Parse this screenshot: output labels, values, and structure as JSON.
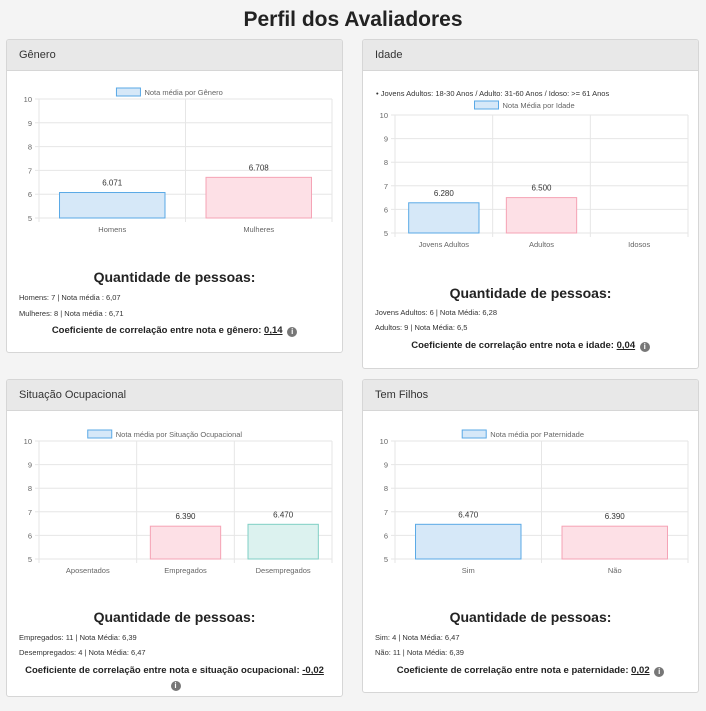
{
  "page": {
    "title": "Perfil dos Avaliadores"
  },
  "cards": [
    {
      "header": "Gênero",
      "note": "",
      "qty_title": "Quantidade de pessoas:",
      "lines": [
        "Homens: 7 | Nota média : 6,07",
        "Mulheres: 8 | Nota média : 6,71"
      ],
      "corr_label": "Coeficiente de correlação entre nota e gênero:",
      "corr_value": "0,14",
      "info_icon": "i"
    },
    {
      "header": "Idade",
      "note": "• Jovens Adultos: 18-30 Anos / Adulto: 31-60 Anos / Idoso: >= 61 Anos",
      "qty_title": "Quantidade de pessoas:",
      "lines": [
        "Jovens Adultos: 6 | Nota Média: 6,28",
        "Adultos: 9 | Nota Média: 6,5"
      ],
      "corr_label": "Coeficiente de correlação entre nota e idade:",
      "corr_value": "0,04",
      "info_icon": "i"
    },
    {
      "header": "Situação Ocupacional",
      "note": "",
      "qty_title": "Quantidade de pessoas:",
      "lines": [
        "Empregados: 11 | Nota Média: 6,39",
        "Desempregados: 4 | Nota Média: 6,47"
      ],
      "corr_label": "Coeficiente de correlação entre nota e situação ocupacional:",
      "corr_value": "-0,02",
      "info_icon": "i"
    },
    {
      "header": "Tem Filhos",
      "note": "",
      "qty_title": "Quantidade de pessoas:",
      "lines": [
        "Sim: 4 | Nota Média: 6,47",
        "Não: 11 | Nota Média: 6,39"
      ],
      "corr_label": "Coeficiente de correlação entre nota e paternidade:",
      "corr_value": "0,02",
      "info_icon": "i"
    }
  ],
  "chart_data": [
    {
      "type": "bar",
      "title": "",
      "legend": "Nota média por Gênero",
      "legend_position": "top",
      "categories": [
        "Homens",
        "Mulheres"
      ],
      "values": [
        6.071,
        6.708
      ],
      "data_labels": [
        "6.071",
        "6.708"
      ],
      "colors": [
        "#d6e8f8",
        "#fde0e6"
      ],
      "border_colors": [
        "#5aa9e6",
        "#f5a3b5"
      ],
      "y_ticks": [
        "5",
        "6",
        "7",
        "8",
        "9",
        "10"
      ],
      "ylim": [
        5,
        10
      ],
      "grid": true
    },
    {
      "type": "bar",
      "title": "",
      "legend": "Nota Média por Idade",
      "legend_position": "top",
      "categories": [
        "Jovens Adultos",
        "Adultos",
        "Idosos"
      ],
      "values": [
        6.28,
        6.5,
        null
      ],
      "data_labels": [
        "6.280",
        "6.500",
        ""
      ],
      "colors": [
        "#d6e8f8",
        "#fde0e6",
        "#d6e8f8"
      ],
      "border_colors": [
        "#5aa9e6",
        "#f5a3b5",
        "#5aa9e6"
      ],
      "y_ticks": [
        "5",
        "6",
        "7",
        "8",
        "9",
        "10"
      ],
      "ylim": [
        5,
        10
      ],
      "grid": true
    },
    {
      "type": "bar",
      "title": "",
      "legend": "Nota média por Situação Ocupacional",
      "legend_position": "top",
      "categories": [
        "Aposentados",
        "Empregados",
        "Desempregados"
      ],
      "values": [
        null,
        6.39,
        6.47
      ],
      "data_labels": [
        "",
        "6.390",
        "6.470"
      ],
      "colors": [
        "#d6e8f8",
        "#fde0e6",
        "#dcf2ef"
      ],
      "border_colors": [
        "#5aa9e6",
        "#f5a3b5",
        "#7fcfc4"
      ],
      "y_ticks": [
        "5",
        "6",
        "7",
        "8",
        "9",
        "10"
      ],
      "ylim": [
        5,
        10
      ],
      "grid": true
    },
    {
      "type": "bar",
      "title": "",
      "legend": "Nota média por Paternidade",
      "legend_position": "top",
      "categories": [
        "Sim",
        "Não"
      ],
      "values": [
        6.47,
        6.39
      ],
      "data_labels": [
        "6.470",
        "6.390"
      ],
      "colors": [
        "#d6e8f8",
        "#fde0e6"
      ],
      "border_colors": [
        "#5aa9e6",
        "#f5a3b5"
      ],
      "y_ticks": [
        "5",
        "6",
        "7",
        "8",
        "9",
        "10"
      ],
      "ylim": [
        5,
        10
      ],
      "grid": true
    }
  ]
}
